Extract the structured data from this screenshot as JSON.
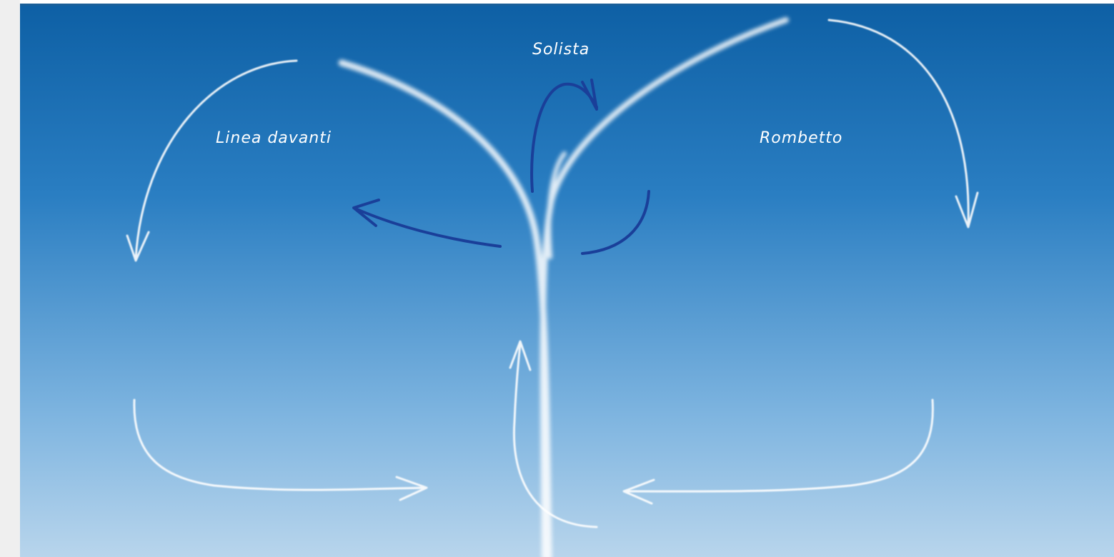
{
  "labels": {
    "top": "Solista",
    "left": "Linea davanti",
    "right": "Rombetto"
  }
}
